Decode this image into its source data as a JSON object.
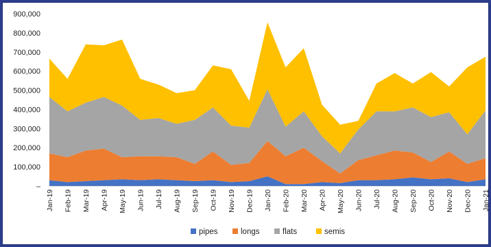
{
  "chart_data": {
    "type": "area",
    "stacked": true,
    "title": "",
    "xlabel": "",
    "ylabel": "",
    "ylim": [
      0,
      900000
    ],
    "ytick_labels": [
      "–",
      "100,000",
      "200,000",
      "300,000",
      "400,000",
      "500,000",
      "600,000",
      "700,000",
      "800,000",
      "900,000"
    ],
    "grid": false,
    "legend_position": "bottom",
    "categories": [
      "Jan-19",
      "Feb-19",
      "Mar-19",
      "Apr-19",
      "May-19",
      "Jun-19",
      "Jul-19",
      "Aug-19",
      "Sep-19",
      "Oct-19",
      "Nov-19",
      "Dec-19",
      "Jan-20",
      "Feb-20",
      "Mar-20",
      "Apr-20",
      "May-20",
      "Jun-20",
      "Jul-20",
      "Aug-20",
      "Sep-20",
      "Oct-20",
      "Nov-20",
      "Dec-20",
      "Jan-21"
    ],
    "series": [
      {
        "name": "pipes",
        "color": "#4472c4",
        "values": [
          30000,
          20000,
          25000,
          30000,
          35000,
          30000,
          35000,
          30000,
          25000,
          30000,
          20000,
          25000,
          50000,
          10000,
          10000,
          20000,
          15000,
          30000,
          30000,
          35000,
          45000,
          35000,
          40000,
          20000,
          35000
        ]
      },
      {
        "name": "longs",
        "color": "#ed7d31",
        "values": [
          140000,
          130000,
          160000,
          165000,
          115000,
          125000,
          120000,
          120000,
          90000,
          150000,
          90000,
          95000,
          185000,
          145000,
          190000,
          110000,
          50000,
          105000,
          130000,
          150000,
          130000,
          90000,
          140000,
          95000,
          110000
        ]
      },
      {
        "name": "flats",
        "color": "#a5a5a5",
        "values": [
          295000,
          240000,
          250000,
          270000,
          270000,
          190000,
          200000,
          175000,
          230000,
          230000,
          205000,
          185000,
          270000,
          155000,
          190000,
          130000,
          105000,
          160000,
          230000,
          205000,
          235000,
          235000,
          205000,
          155000,
          250000
        ]
      },
      {
        "name": "semis",
        "color": "#ffc000",
        "values": [
          200000,
          170000,
          305000,
          270000,
          345000,
          215000,
          175000,
          160000,
          155000,
          220000,
          295000,
          140000,
          350000,
          310000,
          330000,
          165000,
          150000,
          45000,
          145000,
          200000,
          125000,
          235000,
          135000,
          350000,
          280000
        ]
      }
    ]
  }
}
